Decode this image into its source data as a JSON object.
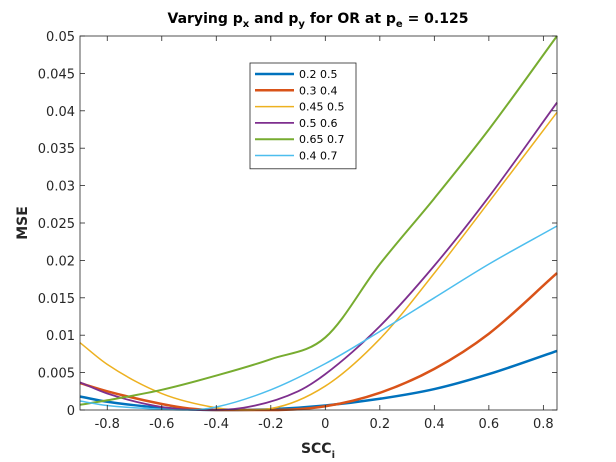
{
  "chart_data": {
    "type": "line",
    "title": {
      "prefix": "Varying p",
      "sub1": "x",
      "mid1": " and p",
      "sub2": "y",
      "mid2": " for OR at p",
      "sub3": "e",
      "suffix": " = 0.125"
    },
    "xlabel": {
      "main": "SCC",
      "sub": "i"
    },
    "ylabel": "MSE",
    "xlim": [
      -0.9,
      0.85
    ],
    "ylim": [
      0,
      0.05
    ],
    "xticks": [
      -0.8,
      -0.6,
      -0.4,
      -0.2,
      0,
      0.2,
      0.4,
      0.6,
      0.8
    ],
    "xtick_labels": [
      "-0.8",
      "-0.6",
      "-0.4",
      "-0.2",
      "0",
      "0.2",
      "0.4",
      "0.6",
      "0.8"
    ],
    "yticks": [
      0,
      0.005,
      0.01,
      0.015,
      0.02,
      0.025,
      0.03,
      0.035,
      0.04,
      0.045,
      0.05
    ],
    "ytick_labels": [
      "0",
      "0.005",
      "0.01",
      "0.015",
      "0.02",
      "0.025",
      "0.03",
      "0.035",
      "0.04",
      "0.045",
      "0.05"
    ],
    "legend_position": "top-center",
    "series": [
      {
        "name": "0.2  0.5",
        "color": "#0072BD",
        "width": 2.5,
        "x": [
          -0.9,
          -0.8,
          -0.6,
          -0.4,
          -0.2,
          0,
          0.2,
          0.4,
          0.6,
          0.85
        ],
        "y": [
          0.0018,
          0.0011,
          0.0003,
          0.0,
          0.0001,
          0.0006,
          0.0015,
          0.0028,
          0.0048,
          0.0079
        ]
      },
      {
        "name": "0.3 0.4",
        "color": "#D95319",
        "width": 2.5,
        "x": [
          -0.9,
          -0.8,
          -0.6,
          -0.5,
          -0.4,
          -0.2,
          0,
          0.2,
          0.4,
          0.6,
          0.85
        ],
        "y": [
          0.0036,
          0.0025,
          0.0008,
          0.0002,
          0.0,
          0.0,
          0.0005,
          0.0023,
          0.0055,
          0.0102,
          0.0183
        ]
      },
      {
        "name": "0.45 0.5",
        "color": "#EDB120",
        "width": 1.5,
        "x": [
          -0.9,
          -0.8,
          -0.6,
          -0.4,
          -0.3,
          -0.2,
          0,
          0.2,
          0.4,
          0.6,
          0.85
        ],
        "y": [
          0.009,
          0.0061,
          0.0022,
          0.0003,
          0.0,
          0.0002,
          0.0032,
          0.0095,
          0.0183,
          0.0278,
          0.0398
        ]
      },
      {
        "name": "0.5 0.6",
        "color": "#7E2F8E",
        "width": 1.8,
        "x": [
          -0.9,
          -0.8,
          -0.6,
          -0.45,
          -0.3,
          -0.1,
          0,
          0.2,
          0.4,
          0.6,
          0.85
        ],
        "y": [
          0.0037,
          0.0022,
          0.0004,
          0.0,
          0.0003,
          0.0025,
          0.0048,
          0.0112,
          0.0193,
          0.0285,
          0.0411
        ]
      },
      {
        "name": "0.65 0.7",
        "color": "#77AC30",
        "width": 2.0,
        "x": [
          -0.9,
          -0.8,
          -0.6,
          -0.4,
          -0.2,
          0,
          0.2,
          0.4,
          0.6,
          0.85
        ],
        "y": [
          0.0007,
          0.0013,
          0.0027,
          0.0046,
          0.0068,
          0.0097,
          0.0195,
          0.0283,
          0.0375,
          0.05
        ]
      },
      {
        "name": "0.4 0.7",
        "color": "#4DBEEE",
        "width": 1.5,
        "x": [
          -0.9,
          -0.8,
          -0.6,
          -0.5,
          -0.4,
          -0.2,
          0,
          0.2,
          0.4,
          0.6,
          0.85
        ],
        "y": [
          0.0012,
          0.0006,
          0.0001,
          0.0,
          0.0004,
          0.0027,
          0.0062,
          0.0105,
          0.015,
          0.0195,
          0.0246
        ]
      }
    ]
  }
}
